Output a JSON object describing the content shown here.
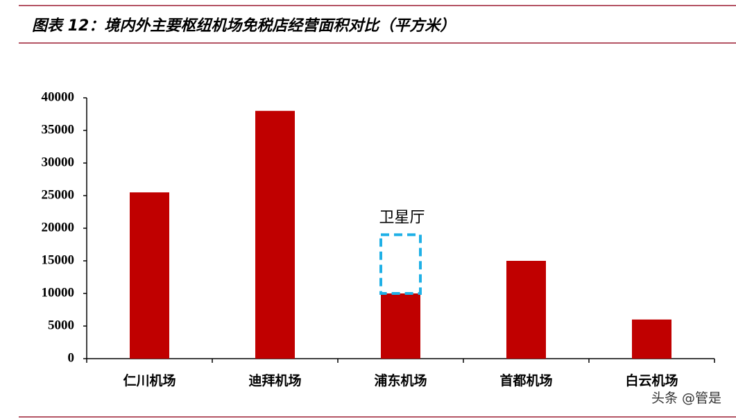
{
  "chart_data": {
    "type": "bar",
    "title": "图表 12：境内外主要枢纽机场免税店经营面积对比（平方米）",
    "categories": [
      "仁川机场",
      "迪拜机场",
      "浦东机场",
      "首都机场",
      "白云机场"
    ],
    "values": [
      25500,
      38000,
      10000,
      15000,
      6000
    ],
    "color": "#c00000",
    "ylim": [
      0,
      40000
    ],
    "yticks": [
      0,
      5000,
      10000,
      15000,
      20000,
      25000,
      30000,
      35000,
      40000
    ],
    "grid": false,
    "annotation": {
      "text": "卫星厅",
      "category": "浦东机场",
      "value": 9000,
      "color": "#1fb0e6"
    },
    "watermark": "头条 @管是"
  }
}
